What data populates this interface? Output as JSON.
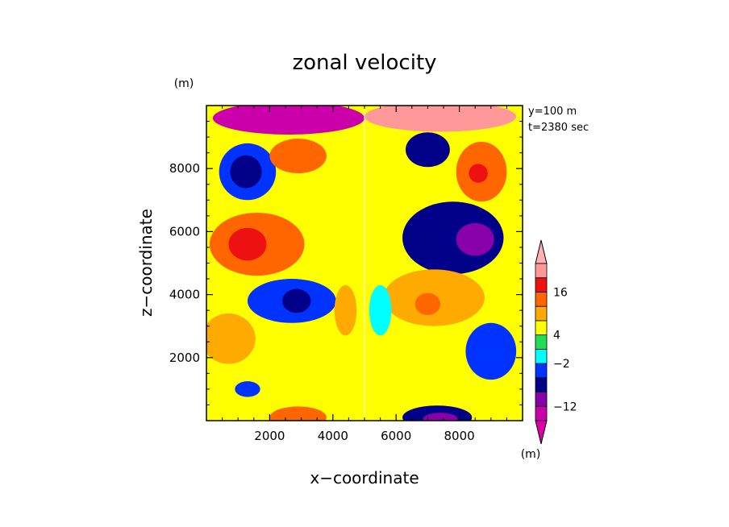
{
  "chart_data": {
    "type": "heatmap",
    "title": "zonal velocity",
    "xlabel": "x−coordinate",
    "ylabel": "z−coordinate",
    "x_unit": "(m)",
    "y_unit": "(m)",
    "annotation_lines": [
      "y=100 m",
      "t=2380 sec"
    ],
    "xlim": [
      0,
      10000
    ],
    "ylim": [
      0,
      10000
    ],
    "x_ticks": [
      2000,
      4000,
      6000,
      8000
    ],
    "y_ticks": [
      2000,
      4000,
      6000,
      8000
    ],
    "x_tick_labels": [
      "2000",
      "4000",
      "6000",
      "8000"
    ],
    "y_tick_labels": [
      "2000",
      "4000",
      "6000",
      "8000"
    ],
    "colorbar": {
      "unit": "(m)",
      "labeled_levels": [
        "16",
        "4",
        "−2",
        "−12"
      ],
      "colors": [
        "#cc00aa",
        "#8800aa",
        "#000088",
        "#0033ff",
        "#00ffff",
        "#22dd55",
        "#ffff00",
        "#ffaa00",
        "#ff6600",
        "#ee1111",
        "#ff9999"
      ],
      "top_color": "#ffb0b0",
      "bottom_color": "#dd00aa"
    },
    "background_color": "#ffff00",
    "regions": [
      {
        "cx": 2600,
        "cy": 9600,
        "rx": 2400,
        "ry": 520,
        "color": "#cc00aa"
      },
      {
        "cx": 1300,
        "cy": 7900,
        "rx": 900,
        "ry": 900,
        "color": "#0033ff"
      },
      {
        "cx": 1250,
        "cy": 7900,
        "rx": 500,
        "ry": 520,
        "color": "#000088"
      },
      {
        "cx": 2900,
        "cy": 8400,
        "rx": 900,
        "ry": 550,
        "color": "#ff6600"
      },
      {
        "cx": 1600,
        "cy": 5600,
        "rx": 1500,
        "ry": 1000,
        "color": "#ff6600"
      },
      {
        "cx": 1300,
        "cy": 5600,
        "rx": 600,
        "ry": 520,
        "color": "#ee1111"
      },
      {
        "cx": 2700,
        "cy": 3800,
        "rx": 1400,
        "ry": 700,
        "color": "#0033ff"
      },
      {
        "cx": 2850,
        "cy": 3800,
        "rx": 450,
        "ry": 380,
        "color": "#000088"
      },
      {
        "cx": 700,
        "cy": 2600,
        "rx": 850,
        "ry": 800,
        "color": "#ffaa00"
      },
      {
        "cx": 1300,
        "cy": 1000,
        "rx": 400,
        "ry": 250,
        "color": "#0033ff"
      },
      {
        "cx": 2900,
        "cy": 100,
        "rx": 900,
        "ry": 350,
        "color": "#ff6600"
      },
      {
        "cx": 4400,
        "cy": 3500,
        "rx": 350,
        "ry": 800,
        "color": "#ffaa00"
      },
      {
        "cx": 7400,
        "cy": 9650,
        "rx": 2400,
        "ry": 480,
        "color": "#ff9999"
      },
      {
        "cx": 7000,
        "cy": 8600,
        "rx": 700,
        "ry": 550,
        "color": "#000088"
      },
      {
        "cx": 8700,
        "cy": 7900,
        "rx": 800,
        "ry": 950,
        "color": "#ff6600"
      },
      {
        "cx": 8600,
        "cy": 7850,
        "rx": 300,
        "ry": 300,
        "color": "#ee1111"
      },
      {
        "cx": 7800,
        "cy": 5800,
        "rx": 1600,
        "ry": 1150,
        "color": "#000088"
      },
      {
        "cx": 8500,
        "cy": 5750,
        "rx": 600,
        "ry": 520,
        "color": "#8800aa"
      },
      {
        "cx": 7200,
        "cy": 3900,
        "rx": 1600,
        "ry": 900,
        "color": "#ffaa00"
      },
      {
        "cx": 7000,
        "cy": 3700,
        "rx": 400,
        "ry": 350,
        "color": "#ff6600"
      },
      {
        "cx": 9000,
        "cy": 2200,
        "rx": 800,
        "ry": 900,
        "color": "#0033ff"
      },
      {
        "cx": 5500,
        "cy": 3500,
        "rx": 350,
        "ry": 800,
        "color": "#00ffff"
      },
      {
        "cx": 7300,
        "cy": 100,
        "rx": 1100,
        "ry": 380,
        "color": "#000088"
      },
      {
        "cx": 7400,
        "cy": 50,
        "rx": 550,
        "ry": 200,
        "color": "#8800aa"
      }
    ]
  }
}
